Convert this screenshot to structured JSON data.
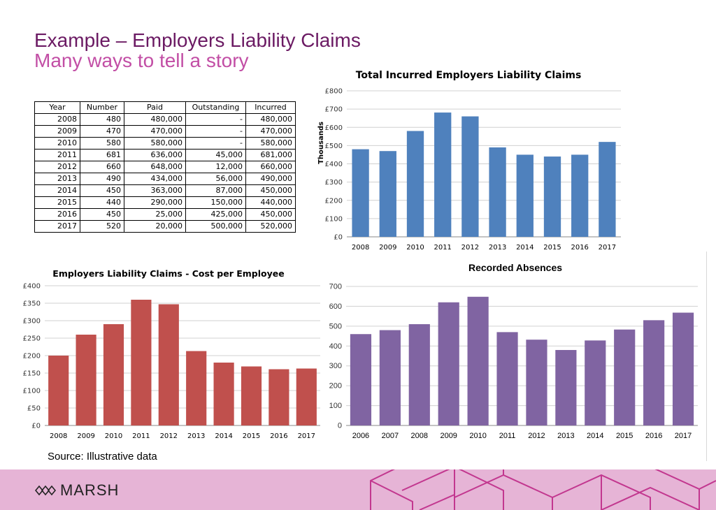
{
  "header": {
    "title": "Example – Employers Liability Claims",
    "subtitle": "Many ways to tell a story"
  },
  "table": {
    "headers": [
      "Year",
      "Number",
      "Paid",
      "Outstanding",
      "Incurred"
    ],
    "rows": [
      [
        "2008",
        "480",
        "480,000",
        "-",
        "480,000"
      ],
      [
        "2009",
        "470",
        "470,000",
        "-",
        "470,000"
      ],
      [
        "2010",
        "580",
        "580,000",
        "-",
        "580,000"
      ],
      [
        "2011",
        "681",
        "636,000",
        "45,000",
        "681,000"
      ],
      [
        "2012",
        "660",
        "648,000",
        "12,000",
        "660,000"
      ],
      [
        "2013",
        "490",
        "434,000",
        "56,000",
        "490,000"
      ],
      [
        "2014",
        "450",
        "363,000",
        "87,000",
        "450,000"
      ],
      [
        "2015",
        "440",
        "290,000",
        "150,000",
        "440,000"
      ],
      [
        "2016",
        "450",
        "25,000",
        "425,000",
        "450,000"
      ],
      [
        "2017",
        "520",
        "20,000",
        "500,000",
        "520,000"
      ]
    ]
  },
  "chart_data": [
    {
      "type": "bar",
      "title": "Total Incurred Employers Liability Claims",
      "ylabel": "Thousands",
      "xlabel": "",
      "categories": [
        "2008",
        "2009",
        "2010",
        "2011",
        "2012",
        "2013",
        "2014",
        "2015",
        "2016",
        "2017"
      ],
      "values": [
        480,
        470,
        580,
        681,
        660,
        490,
        450,
        440,
        450,
        520
      ],
      "ylim": [
        0,
        800
      ],
      "yticks": [
        0,
        100,
        200,
        300,
        400,
        500,
        600,
        700,
        800
      ],
      "ytick_labels": [
        "£0",
        "£100",
        "£200",
        "£300",
        "£400",
        "£500",
        "£600",
        "£700",
        "£800"
      ],
      "color": "#4f81bd",
      "grid": true
    },
    {
      "type": "bar",
      "title": "Employers Liability Claims - Cost per Employee",
      "ylabel": "",
      "xlabel": "",
      "categories": [
        "2008",
        "2009",
        "2010",
        "2011",
        "2012",
        "2013",
        "2014",
        "2015",
        "2016",
        "2017"
      ],
      "values": [
        200,
        260,
        290,
        360,
        347,
        213,
        180,
        169,
        161,
        163
      ],
      "ylim": [
        0,
        400
      ],
      "yticks": [
        0,
        50,
        100,
        150,
        200,
        250,
        300,
        350,
        400
      ],
      "ytick_labels": [
        "£0",
        "£50",
        "£100",
        "£150",
        "£200",
        "£250",
        "£300",
        "£350",
        "£400"
      ],
      "color": "#c0504d",
      "grid": true
    },
    {
      "type": "bar",
      "title": "Recorded Absences",
      "ylabel": "",
      "xlabel": "",
      "categories": [
        "2006",
        "2007",
        "2008",
        "2009",
        "2010",
        "2011",
        "2012",
        "2013",
        "2014",
        "2015",
        "2016",
        "2017"
      ],
      "values": [
        460,
        480,
        510,
        620,
        648,
        470,
        432,
        380,
        428,
        483,
        530,
        568
      ],
      "ylim": [
        0,
        700
      ],
      "yticks": [
        0,
        100,
        200,
        300,
        400,
        500,
        600,
        700
      ],
      "ytick_labels": [
        "0",
        "100",
        "200",
        "300",
        "400",
        "500",
        "600",
        "700"
      ],
      "color": "#8064a2",
      "grid": true
    }
  ],
  "source": "Source: Illustrative data",
  "footer": {
    "logo_text": "MARSH",
    "logo_icon": "marsh-knot-icon",
    "background": "#e6b4d6",
    "pattern_color": "#c2378f"
  }
}
